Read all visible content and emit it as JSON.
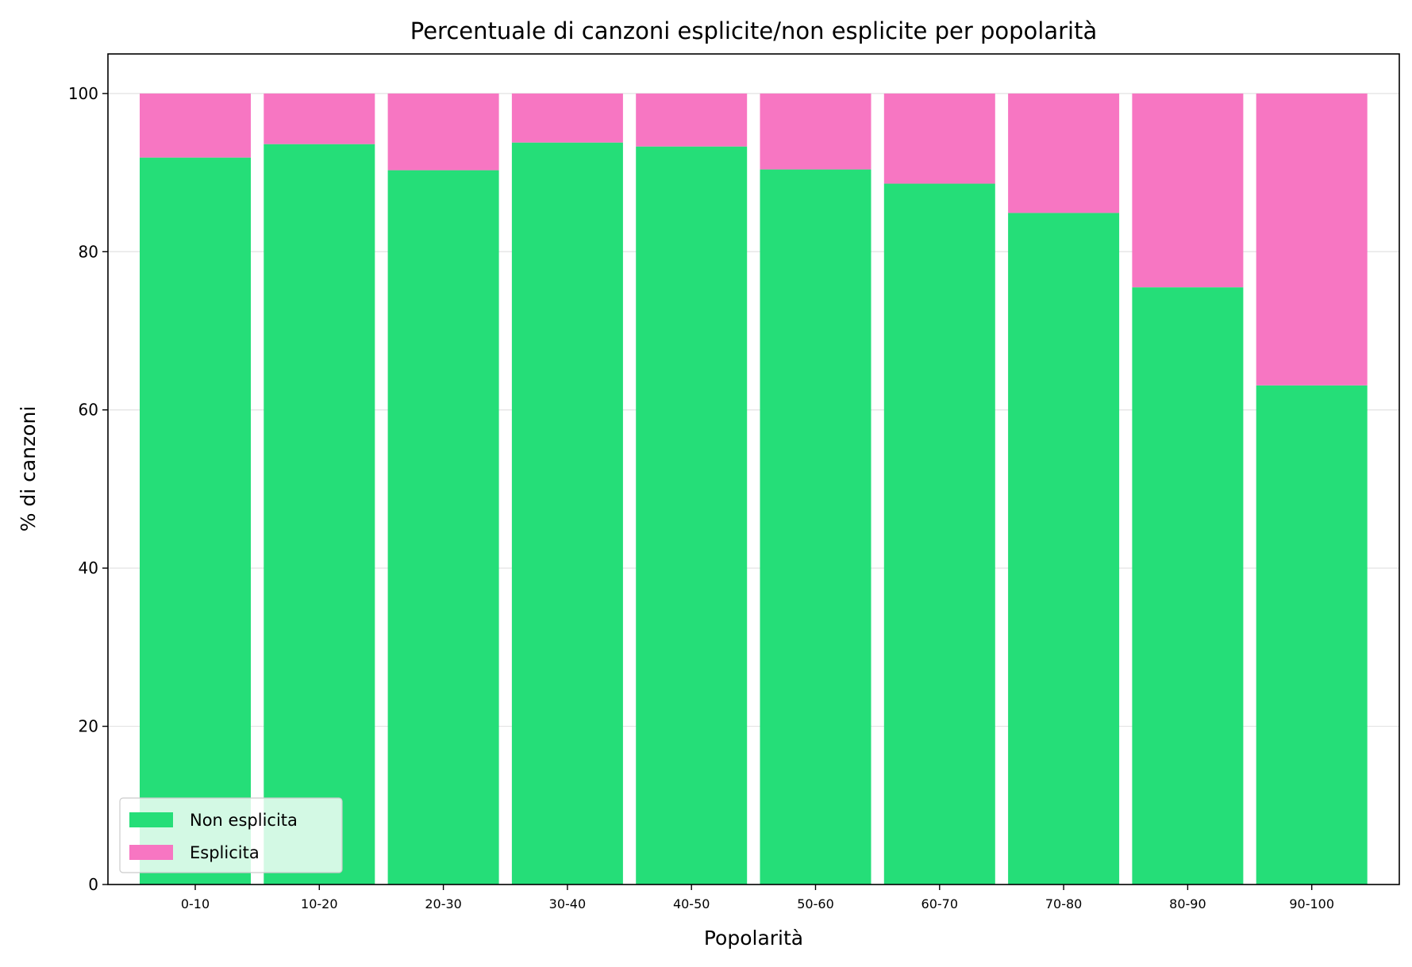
{
  "chart_data": {
    "type": "bar",
    "stacked": true,
    "title": "Percentuale di canzoni esplicite/non esplicite per popolarità",
    "xlabel": "Popolarità",
    "ylabel": "% di canzoni",
    "ylim": [
      0,
      105
    ],
    "yticks": [
      0,
      20,
      40,
      60,
      80,
      100
    ],
    "grid": "horizontal",
    "legend_position": "lower-left",
    "categories": [
      "0-10",
      "10-20",
      "20-30",
      "30-40",
      "40-50",
      "50-60",
      "60-70",
      "70-80",
      "80-90",
      "90-100"
    ],
    "series": [
      {
        "name": "Non esplicita",
        "color": "#25de78",
        "values": [
          91.9,
          93.6,
          90.3,
          93.8,
          93.3,
          90.4,
          88.6,
          84.9,
          75.5,
          63.1
        ]
      },
      {
        "name": "Esplicita",
        "color": "#f776c2",
        "values": [
          8.1,
          6.4,
          9.7,
          6.2,
          6.7,
          9.6,
          11.4,
          15.1,
          24.5,
          36.9
        ]
      }
    ]
  }
}
